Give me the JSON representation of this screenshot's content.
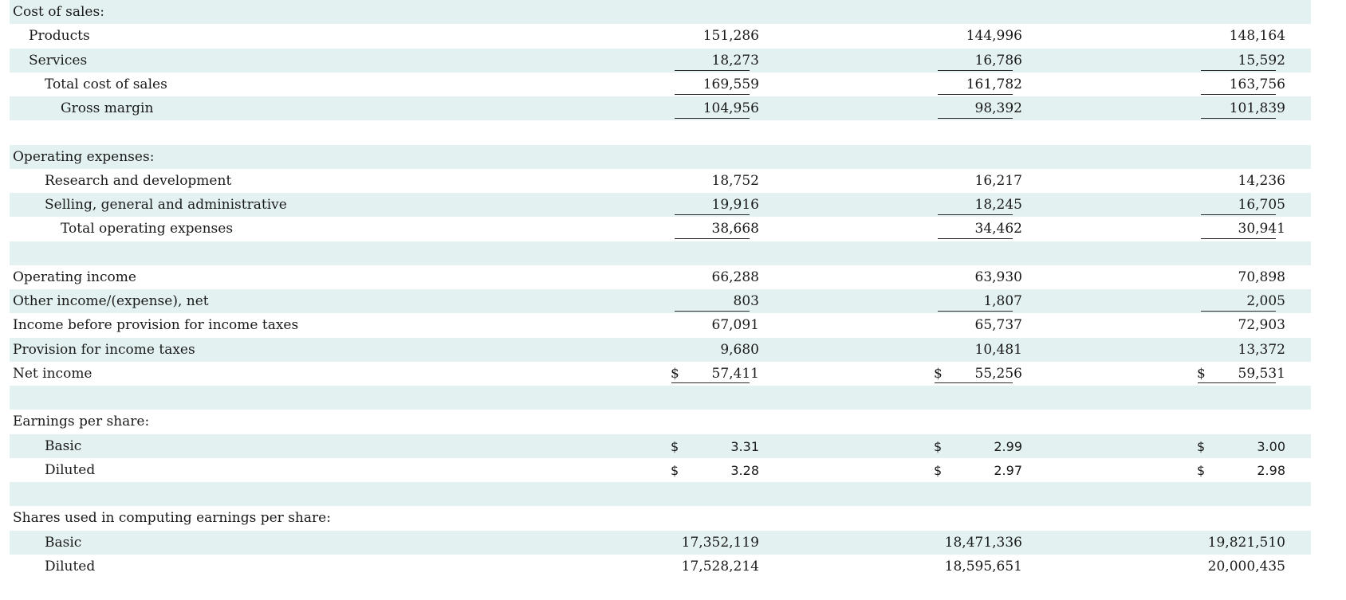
{
  "rows": [
    {
      "label": "Cost of sales:",
      "indent": 0,
      "shaded": true,
      "values": []
    },
    {
      "label": "Products",
      "indent": 1,
      "shaded": false,
      "values": [
        "151,286",
        "144,996",
        "148,164"
      ]
    },
    {
      "label": "Services",
      "indent": 1,
      "shaded": true,
      "values": [
        "18,273",
        "16,786",
        "15,592"
      ],
      "underline": "single"
    },
    {
      "label": "Total cost of sales",
      "indent": 2,
      "shaded": false,
      "values": [
        "169,559",
        "161,782",
        "163,756"
      ],
      "underline": "single"
    },
    {
      "label": "Gross margin",
      "indent": 3,
      "shaded": true,
      "values": [
        "104,956",
        "98,392",
        "101,839"
      ],
      "underline": "single"
    },
    {
      "label": "",
      "indent": 0,
      "shaded": false,
      "values": []
    },
    {
      "label": "Operating expenses:",
      "indent": 0,
      "shaded": true,
      "values": []
    },
    {
      "label": "Research and development",
      "indent": 2,
      "shaded": false,
      "values": [
        "18,752",
        "16,217",
        "14,236"
      ]
    },
    {
      "label": "Selling, general and administrative",
      "indent": 2,
      "shaded": true,
      "values": [
        "19,916",
        "18,245",
        "16,705"
      ],
      "underline": "single"
    },
    {
      "label": "Total operating expenses",
      "indent": 3,
      "shaded": false,
      "values": [
        "38,668",
        "34,462",
        "30,941"
      ],
      "underline": "single"
    },
    {
      "label": "",
      "indent": 0,
      "shaded": true,
      "values": []
    },
    {
      "label": "Operating income",
      "indent": 0,
      "shaded": false,
      "values": [
        "66,288",
        "63,930",
        "70,898"
      ]
    },
    {
      "label": "Other income/(expense), net",
      "indent": 0,
      "shaded": true,
      "values": [
        "803",
        "1,807",
        "2,005"
      ],
      "underline": "single"
    },
    {
      "label": "Income before provision for income taxes",
      "indent": 0,
      "shaded": false,
      "values": [
        "67,091",
        "65,737",
        "72,903"
      ]
    },
    {
      "label": "Provision for income taxes",
      "indent": 0,
      "shaded": true,
      "values": [
        "9,680",
        "10,481",
        "13,372"
      ]
    },
    {
      "label": "Net income",
      "indent": 0,
      "shaded": false,
      "values": [
        "57,411",
        "55,256",
        "59,531"
      ],
      "dollar": "$",
      "underline": "double"
    },
    {
      "label": "",
      "indent": 0,
      "shaded": true,
      "values": []
    },
    {
      "label": "Earnings per share:",
      "indent": 0,
      "shaded": false,
      "values": []
    },
    {
      "label": "Basic",
      "indent": 2,
      "shaded": true,
      "values": [
        "3.31",
        "2.99",
        "3.00"
      ],
      "dollar": "$",
      "sans": true
    },
    {
      "label": "Diluted",
      "indent": 2,
      "shaded": false,
      "values": [
        "3.28",
        "2.97",
        "2.98"
      ],
      "dollar": "$",
      "sans": true
    },
    {
      "label": "",
      "indent": 0,
      "shaded": true,
      "values": []
    },
    {
      "label": "Shares used in computing earnings per share:",
      "indent": 0,
      "shaded": false,
      "values": []
    },
    {
      "label": "Basic",
      "indent": 2,
      "shaded": true,
      "values": [
        "17,352,119",
        "18,471,336",
        "19,821,510"
      ]
    },
    {
      "label": "Diluted",
      "indent": 2,
      "shaded": false,
      "values": [
        "17,528,214",
        "18,595,651",
        "20,000,435"
      ]
    }
  ]
}
